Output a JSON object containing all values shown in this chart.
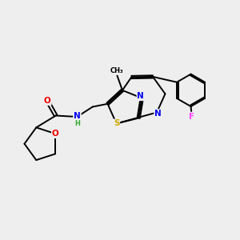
{
  "bg_color": "#eeeeee",
  "bond_color": "#000000",
  "atom_colors": {
    "N": "#0000ee",
    "O": "#ee0000",
    "S": "#ccaa00",
    "F": "#ff44ff",
    "C": "#000000",
    "H": "#33aa33"
  },
  "figsize": [
    3.0,
    3.0
  ],
  "dpi": 100
}
